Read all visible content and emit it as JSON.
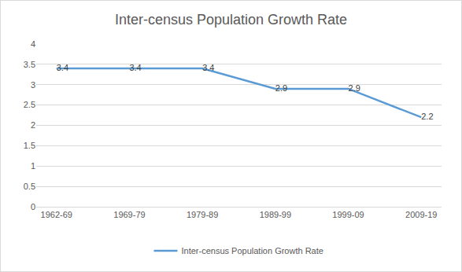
{
  "chart_data": {
    "type": "line",
    "title": "Inter-census Population Growth Rate",
    "categories": [
      "1962-69",
      "1969-79",
      "1979-89",
      "1989-99",
      "1999-09",
      "2009-19"
    ],
    "series": [
      {
        "name": "Inter-census Population Growth Rate",
        "color": "#5b9bd5",
        "values": [
          3.4,
          3.4,
          3.4,
          2.9,
          2.9,
          2.2
        ]
      }
    ],
    "ylim": [
      0,
      4
    ],
    "yticks": [
      0,
      0.5,
      1,
      1.5,
      2,
      2.5,
      3,
      3.5,
      4
    ],
    "grid": true,
    "legend": "bottom",
    "data_labels": true
  }
}
